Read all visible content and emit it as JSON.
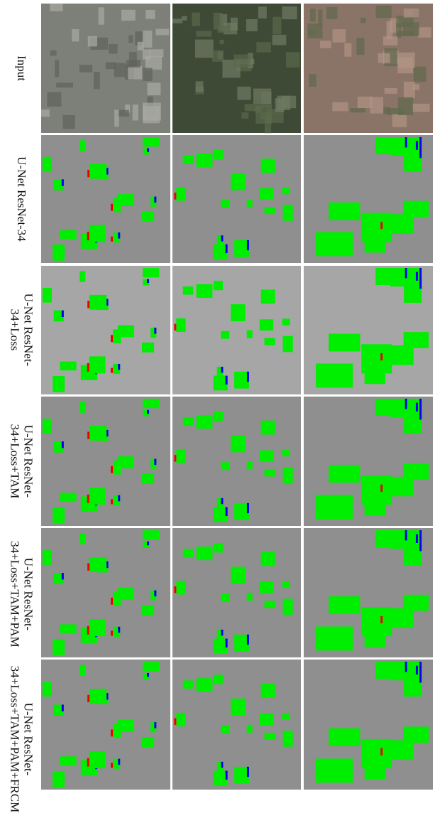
{
  "rows": [
    {
      "label": [
        "Input"
      ]
    },
    {
      "label": [
        "U-Net ResNet-34"
      ]
    },
    {
      "label": [
        "U-Net ResNet-",
        "34+Loss"
      ]
    },
    {
      "label": [
        "U-Net ResNet-",
        "34+Loss+TAM"
      ]
    },
    {
      "label": [
        "U-Net ResNet-",
        "34+Loss+TAM+PAM"
      ]
    },
    {
      "label": [
        "U-Net ResNet-",
        "34+Loss+TAM+PAM+FRCM"
      ]
    }
  ]
}
